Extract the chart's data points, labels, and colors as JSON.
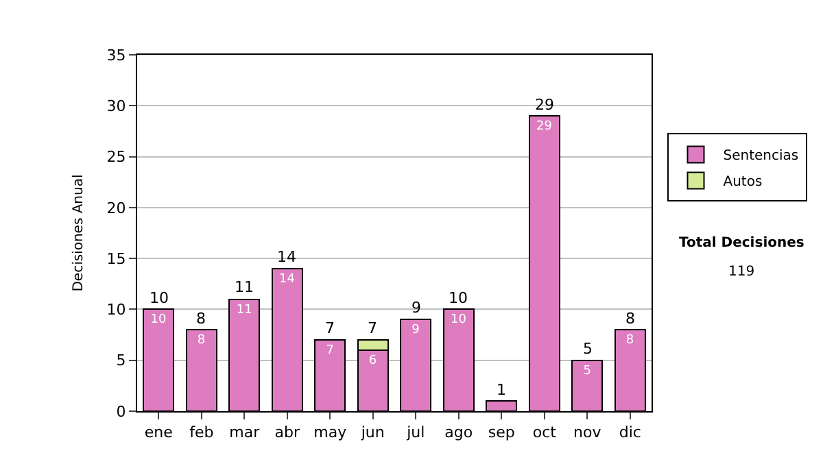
{
  "chart_data": {
    "type": "bar",
    "stacked": true,
    "ylabel": "Decisiones Anual",
    "categories": [
      "ene",
      "feb",
      "mar",
      "abr",
      "may",
      "jun",
      "jul",
      "ago",
      "sep",
      "oct",
      "nov",
      "dic"
    ],
    "series": [
      {
        "name": "Sentencias",
        "color": "#dd7dc0",
        "values": [
          10,
          8,
          11,
          14,
          7,
          6,
          9,
          10,
          1,
          29,
          5,
          8
        ],
        "value_labels": [
          "10",
          "8",
          "11",
          "14",
          "7",
          "6",
          "9",
          "10",
          null,
          "29",
          "5",
          "8"
        ]
      },
      {
        "name": "Autos",
        "color": "#d6eb9a",
        "values": [
          null,
          null,
          null,
          null,
          null,
          1,
          null,
          null,
          null,
          null,
          null,
          null
        ]
      }
    ],
    "totals": [
      "10",
      "8",
      "11",
      "14",
      "7",
      "7",
      "9",
      "10",
      "1",
      "29",
      "5",
      "8"
    ],
    "ylim": [
      0,
      35
    ],
    "yticks": [
      0,
      5,
      10,
      15,
      20,
      25,
      30,
      35
    ],
    "grid": "y",
    "legend": "right",
    "annotations": [
      "Total Decisiones",
      "119"
    ]
  }
}
